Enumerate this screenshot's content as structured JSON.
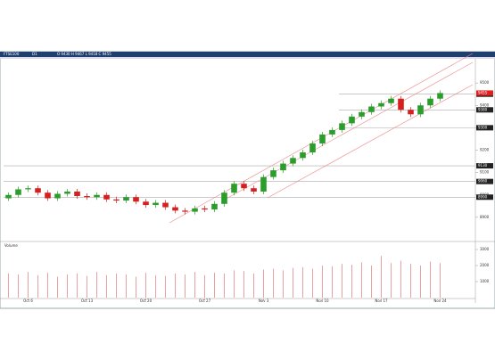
{
  "chart_data": {
    "type": "candlestick",
    "toolbar": [
      "FTSE100",
      "D1",
      "O 9430 H 9467 L 9418 C 9455"
    ],
    "volume_title": "Volume",
    "categories": [
      null,
      null,
      "Oct 6",
      null,
      null,
      null,
      null,
      null,
      "Oct 13",
      null,
      null,
      null,
      null,
      null,
      "Oct 20",
      null,
      null,
      null,
      null,
      null,
      "Oct 27",
      null,
      null,
      null,
      null,
      null,
      "Nov 3",
      null,
      null,
      null,
      null,
      null,
      "Nov 10",
      null,
      null,
      null,
      null,
      null,
      "Nov 17",
      null,
      null,
      null,
      null,
      null,
      "Nov 24"
    ],
    "open": [
      8985,
      9000,
      9025,
      9030,
      9010,
      8985,
      9005,
      9015,
      8995,
      8990,
      9000,
      8980,
      8975,
      8990,
      8970,
      8955,
      8965,
      8945,
      8930,
      8925,
      8940,
      8935,
      8960,
      9010,
      9050,
      9030,
      9015,
      9080,
      9110,
      9140,
      9165,
      9190,
      9230,
      9270,
      9290,
      9320,
      9350,
      9370,
      9395,
      9410,
      9430,
      9380,
      9360,
      9400,
      9430
    ],
    "high": [
      9012,
      9037,
      9042,
      9042,
      9022,
      9017,
      9027,
      9027,
      9007,
      9012,
      9012,
      8992,
      9002,
      9002,
      8982,
      8977,
      8977,
      8957,
      8942,
      8952,
      8952,
      8972,
      9022,
      9062,
      9062,
      9042,
      9092,
      9122,
      9152,
      9177,
      9202,
      9242,
      9282,
      9302,
      9332,
      9362,
      9382,
      9407,
      9422,
      9442,
      9442,
      9392,
      9412,
      9442,
      9467
    ],
    "low": [
      8973,
      8988,
      9013,
      8998,
      8973,
      8973,
      8993,
      8983,
      8978,
      8978,
      8968,
      8963,
      8963,
      8958,
      8943,
      8943,
      8933,
      8918,
      8913,
      8913,
      8923,
      8923,
      8948,
      8998,
      9018,
      9003,
      9003,
      9068,
      9098,
      9128,
      9153,
      9178,
      9218,
      9258,
      9278,
      9308,
      9338,
      9358,
      9383,
      9398,
      9368,
      9348,
      9348,
      9388,
      9418
    ],
    "close": [
      9000,
      9025,
      9030,
      9010,
      8985,
      9005,
      9015,
      8995,
      8990,
      9000,
      8980,
      8975,
      8990,
      8970,
      8955,
      8965,
      8945,
      8930,
      8925,
      8940,
      8935,
      8960,
      9010,
      9050,
      9030,
      9015,
      9080,
      9110,
      9140,
      9165,
      9190,
      9230,
      9270,
      9290,
      9320,
      9350,
      9370,
      9395,
      9410,
      9430,
      9380,
      9360,
      9400,
      9430,
      9455
    ],
    "volume": [
      1500,
      1450,
      1600,
      1400,
      1550,
      1300,
      1450,
      1500,
      1350,
      1600,
      1400,
      1500,
      1450,
      1300,
      1550,
      1400,
      1350,
      1500,
      1450,
      1600,
      1400,
      1550,
      1500,
      1700,
      1650,
      1500,
      1750,
      1800,
      1700,
      1850,
      1900,
      1800,
      2000,
      1950,
      2100,
      2050,
      2200,
      2000,
      2600,
      2150,
      2300,
      2100,
      2000,
      2250,
      2150
    ],
    "up_color": "#2a9d2a",
    "down_color": "#d62020",
    "volume_color": "#e8a0a0",
    "ylim": [
      8800,
      9600
    ],
    "yticks": [
      8900,
      9000,
      9100,
      9200,
      9300,
      9400,
      9500
    ],
    "levels": [
      9450,
      9380,
      9300,
      9130,
      9060,
      8990
    ],
    "vlim": [
      0,
      3000
    ],
    "vticks": [
      1000,
      2000,
      3000
    ],
    "grid": true
  }
}
